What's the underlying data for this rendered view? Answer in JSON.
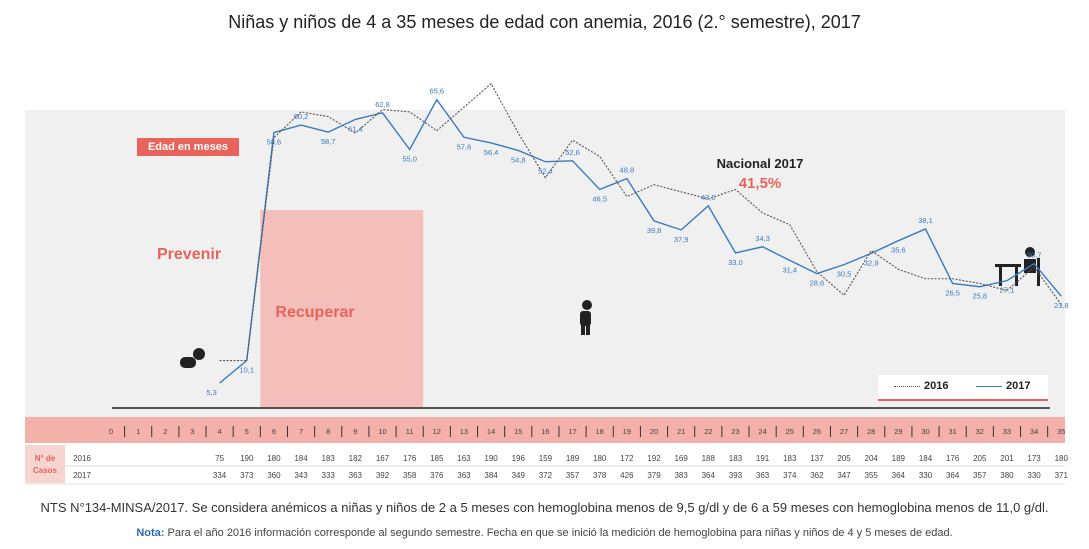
{
  "title": "Niñas y niños de 4 a 35 meses de edad con anemia, 2016 (2.° semestre), 2017",
  "edad_badge": "Edad en meses",
  "nacional": {
    "label": "Nacional 2017",
    "value": "41,5%"
  },
  "zones": {
    "prevenir": "Prevenir",
    "recuperar": "Recuperar"
  },
  "legend": {
    "s2016": "2016",
    "s2017": "2017"
  },
  "table": {
    "row_header": "N° de Casos",
    "year_2016": "2016",
    "year_2017": "2017",
    "cases_2016": [
      75,
      190,
      180,
      184,
      183,
      182,
      167,
      176,
      185,
      163,
      190,
      196,
      159,
      189,
      180,
      172,
      192,
      169,
      188,
      183,
      191,
      183,
      137,
      205,
      204,
      189,
      184,
      176,
      205,
      201,
      173,
      180
    ],
    "cases_2017": [
      334,
      373,
      360,
      343,
      333,
      363,
      392,
      358,
      376,
      363,
      384,
      349,
      372,
      357,
      378,
      426,
      379,
      383,
      364,
      393,
      363,
      374,
      362,
      347,
      355,
      364,
      330,
      364,
      357,
      380,
      330,
      371
    ]
  },
  "footnote": "NTS N°134-MINSA/2017. Se considera anémicos a niñas y niños de 2 a 5 meses con hemoglobina menos de 9,5 g/dl  y de 6 a 59 meses con hemoglobina menos de 11,0 g/dl.",
  "nota_label": "Nota:",
  "nota_text": "Para el año 2016 información corresponde al segundo semestre. Fecha en que se inició la medición de hemoglobina para niñas y niños de 4 y 5 meses de edad.",
  "colors": {
    "s2017": "#3b7ac0",
    "s2016": "#555555",
    "accent": "#e8635a",
    "band": "#f4bfbb",
    "strip": "#f3b1aa"
  },
  "chart_data": {
    "type": "line",
    "x": [
      4,
      5,
      6,
      7,
      8,
      9,
      10,
      11,
      12,
      13,
      14,
      15,
      16,
      17,
      18,
      19,
      20,
      21,
      22,
      23,
      24,
      25,
      26,
      27,
      28,
      29,
      30,
      31,
      32,
      33,
      34,
      35
    ],
    "ticks": [
      "0",
      "1",
      "2",
      "3",
      "4",
      "5",
      "6",
      "7",
      "8",
      "9",
      "10",
      "11",
      "12",
      "13",
      "14",
      "15",
      "16",
      "17",
      "18",
      "19",
      "20",
      "21",
      "22",
      "23",
      "24",
      "25",
      "26",
      "27",
      "28",
      "29",
      "30",
      "31",
      "32",
      "33",
      "34",
      "35"
    ],
    "series": [
      {
        "name": "2017",
        "values": [
          5.3,
          10.1,
          58.6,
          60.2,
          58.7,
          61.4,
          62.8,
          55.0,
          65.6,
          57.6,
          56.4,
          54.8,
          52.4,
          52.6,
          46.5,
          48.8,
          39.8,
          37.9,
          43.0,
          33.0,
          34.3,
          31.4,
          28.6,
          30.5,
          32.9,
          35.6,
          38.1,
          26.5,
          25.8,
          27.1,
          30.7,
          23.8
        ]
      },
      {
        "name": "2016",
        "values": [
          10.1,
          10.1,
          57.5,
          63.0,
          62.0,
          58.5,
          63.5,
          63.0,
          59.0,
          64.0,
          69.0,
          58.5,
          49.0,
          57.0,
          53.5,
          45.0,
          47.5,
          46.0,
          44.5,
          46.5,
          41.5,
          39.0,
          29.0,
          24.0,
          33.5,
          29.5,
          27.5,
          27.5,
          26.5,
          25.0,
          30.0,
          22.0
        ]
      }
    ],
    "labels_2017": [
      "5,3",
      "10,1",
      "58,6",
      "60,2",
      "58,7",
      "61,4",
      "62,8",
      "55,0",
      "65,6",
      "57,6",
      "56,4",
      "54,8",
      "52,4",
      "52,6",
      "46,5",
      "48,8",
      "39,8",
      "37,9",
      "43,0",
      "33,0",
      "34,3",
      "31,4",
      "28,6",
      "30,5",
      "32,9",
      "35,6",
      "38,1",
      "26,5",
      "25,8",
      "27,1",
      "30,7",
      "23,8"
    ]
  }
}
